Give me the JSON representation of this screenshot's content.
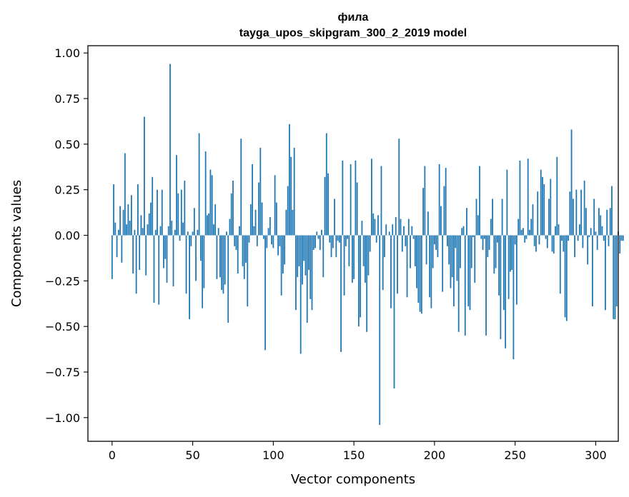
{
  "chart_data": {
    "type": "bar",
    "title": "фила",
    "subtitle": "tayga_upos_skipgram_300_2_2019 model",
    "xlabel": "Vector components",
    "ylabel": "Components values",
    "xlim": [
      -15,
      314
    ],
    "ylim": [
      -1.13,
      1.04
    ],
    "xticks": [
      0,
      50,
      100,
      150,
      200,
      250,
      300
    ],
    "yticks": [
      1.0,
      0.75,
      0.5,
      0.25,
      0.0,
      -0.25,
      -0.5,
      -0.75,
      -1.0
    ],
    "ytick_labels": [
      "1.00",
      "0.75",
      "0.50",
      "0.25",
      "0.00",
      "−0.25",
      "−0.50",
      "−0.75",
      "−1.00"
    ],
    "bar_color": "#1f77b4",
    "grid": false,
    "values": [
      -0.24,
      0.28,
      0.07,
      -0.12,
      0.03,
      0.16,
      -0.15,
      0.14,
      0.45,
      0.06,
      0.17,
      0.08,
      0.22,
      -0.21,
      0.03,
      -0.32,
      0.28,
      -0.19,
      0.11,
      0.04,
      0.65,
      -0.22,
      0.06,
      0.12,
      0.18,
      0.32,
      -0.37,
      0.03,
      0.25,
      -0.38,
      0.05,
      0.25,
      -0.18,
      -0.13,
      -0.26,
      0.05,
      0.94,
      0.08,
      -0.28,
      0.03,
      0.44,
      0.23,
      -0.03,
      0.25,
      0.07,
      0.3,
      -0.32,
      0.02,
      -0.46,
      -0.06,
      0.02,
      0.15,
      -0.25,
      0.03,
      0.56,
      -0.14,
      -0.4,
      -0.29,
      0.46,
      0.11,
      0.12,
      0.36,
      0.33,
      0.06,
      0.17,
      -0.24,
      0.04,
      -0.23,
      -0.3,
      -0.32,
      -0.27,
      0.02,
      -0.48,
      0.09,
      0.23,
      0.3,
      -0.06,
      -0.08,
      -0.21,
      0.05,
      0.53,
      -0.17,
      -0.24,
      -0.15,
      -0.39,
      -0.04,
      0.17,
      0.39,
      0.05,
      0.14,
      -0.06,
      0.29,
      0.48,
      0.18,
      -0.02,
      -0.63,
      -0.07,
      0.04,
      0.1,
      -0.05,
      -0.07,
      0.33,
      0.18,
      -0.11,
      -0.06,
      -0.33,
      -0.21,
      -0.16,
      0.14,
      0.27,
      0.61,
      0.43,
      0.14,
      0.48,
      -0.41,
      -0.23,
      -0.17,
      -0.65,
      -0.27,
      -0.14,
      -0.22,
      -0.48,
      -0.19,
      -0.35,
      -0.41,
      -0.08,
      -0.07,
      0.02,
      -0.02,
      -0.08,
      0.03,
      -0.23,
      0.32,
      0.56,
      0.34,
      -0.04,
      -0.12,
      -0.07,
      0.2,
      -0.12,
      -0.03,
      -0.04,
      -0.64,
      0.41,
      -0.33,
      -0.06,
      -0.02,
      -0.17,
      0.39,
      -0.26,
      -0.24,
      0.41,
      0.29,
      -0.5,
      -0.45,
      0.08,
      -0.17,
      -0.26,
      -0.53,
      -0.22,
      -0.09,
      0.42,
      0.12,
      0.09,
      -0.04,
      0.11,
      -1.04,
      0.38,
      -0.3,
      -0.12,
      0.06,
      0.0,
      0.02,
      -0.4,
      0.06,
      -0.84,
      0.1,
      -0.32,
      0.53,
      0.09,
      -0.09,
      0.05,
      -0.06,
      -0.34,
      0.09,
      -0.18,
      0.05,
      -0.02,
      -0.17,
      -0.29,
      -0.37,
      -0.42,
      -0.43,
      0.26,
      0.38,
      -0.16,
      0.13,
      -0.34,
      -0.4,
      -0.18,
      -0.05,
      -0.08,
      -0.12,
      0.39,
      0.16,
      -0.31,
      0.27,
      0.37,
      -0.06,
      -0.16,
      -0.29,
      -0.23,
      -0.39,
      -0.07,
      -0.25,
      -0.53,
      -0.18,
      0.04,
      0.05,
      -0.55,
      0.15,
      -0.39,
      -0.41,
      -0.18,
      -0.01,
      -0.26,
      0.2,
      0.11,
      0.38,
      -0.02,
      -0.08,
      -0.02,
      -0.55,
      -0.12,
      -0.08,
      0.09,
      0.2,
      -0.21,
      -0.18,
      -0.04,
      -0.33,
      -0.57,
      0.2,
      -0.41,
      -0.62,
      0.36,
      -0.35,
      -0.2,
      -0.19,
      -0.68,
      -0.05,
      -0.38,
      0.09,
      0.41,
      0.03,
      0.04,
      -0.04,
      -0.02,
      0.42,
      0.03,
      0.09,
      0.17,
      -0.06,
      -0.09,
      0.24,
      -0.05,
      0.36,
      0.32,
      0.28,
      -0.02,
      -0.07,
      0.2,
      0.31,
      -0.09,
      -0.1,
      0.05,
      0.43,
      0.06,
      -0.32,
      -0.03,
      -0.09,
      -0.45,
      -0.47,
      -0.03,
      0.24,
      0.58,
      0.2,
      -0.12,
      0.25,
      -0.03,
      0.06,
      0.25,
      -0.07,
      0.3,
      0.15,
      -0.16,
      -0.01,
      0.04,
      -0.39,
      0.2,
      0.02,
      -0.08,
      0.15,
      0.11,
      0.05,
      -0.03,
      -0.41,
      0.14,
      -0.06,
      0.15,
      0.27,
      -0.46,
      -0.46,
      -0.39,
      0.02,
      -0.1,
      -0.03,
      -0.03
    ]
  }
}
